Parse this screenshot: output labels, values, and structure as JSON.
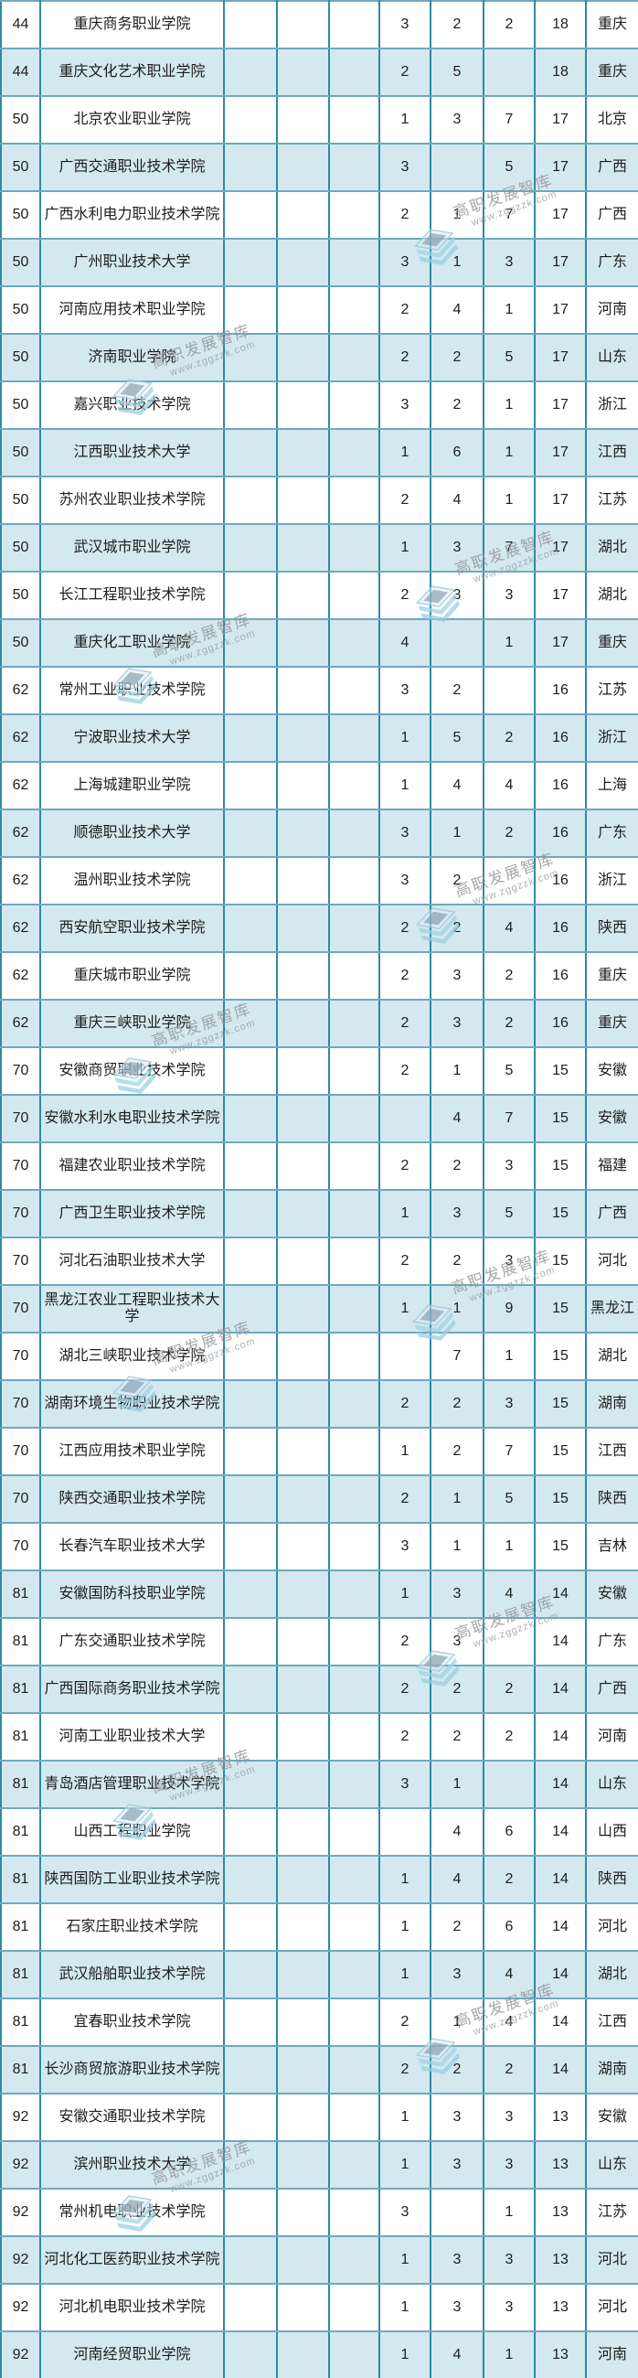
{
  "chart_data": {
    "type": "table",
    "columns": [
      "rank",
      "college_name",
      "blank_1",
      "blank_2",
      "blank_3",
      "num_1",
      "num_2",
      "num_3",
      "total",
      "province"
    ],
    "rows": [
      [
        "44",
        "重庆商务职业学院",
        "",
        "",
        "",
        "3",
        "2",
        "2",
        "18",
        "重庆"
      ],
      [
        "44",
        "重庆文化艺术职业学院",
        "",
        "",
        "",
        "2",
        "5",
        "",
        "18",
        "重庆"
      ],
      [
        "50",
        "北京农业职业学院",
        "",
        "",
        "",
        "1",
        "3",
        "7",
        "17",
        "北京"
      ],
      [
        "50",
        "广西交通职业技术学院",
        "",
        "",
        "",
        "3",
        "",
        "5",
        "17",
        "广西"
      ],
      [
        "50",
        "广西水利电力职业技术学院",
        "",
        "",
        "",
        "2",
        "1",
        "7",
        "17",
        "广西"
      ],
      [
        "50",
        "广州职业技术大学",
        "",
        "",
        "",
        "3",
        "1",
        "3",
        "17",
        "广东"
      ],
      [
        "50",
        "河南应用技术职业学院",
        "",
        "",
        "",
        "2",
        "4",
        "1",
        "17",
        "河南"
      ],
      [
        "50",
        "济南职业学院",
        "",
        "",
        "",
        "2",
        "2",
        "5",
        "17",
        "山东"
      ],
      [
        "50",
        "嘉兴职业技术学院",
        "",
        "",
        "",
        "3",
        "2",
        "1",
        "17",
        "浙江"
      ],
      [
        "50",
        "江西职业技术大学",
        "",
        "",
        "",
        "1",
        "6",
        "1",
        "17",
        "江西"
      ],
      [
        "50",
        "苏州农业职业技术学院",
        "",
        "",
        "",
        "2",
        "4",
        "1",
        "17",
        "江苏"
      ],
      [
        "50",
        "武汉城市职业学院",
        "",
        "",
        "",
        "1",
        "3",
        "7",
        "17",
        "湖北"
      ],
      [
        "50",
        "长江工程职业技术学院",
        "",
        "",
        "",
        "2",
        "3",
        "3",
        "17",
        "湖北"
      ],
      [
        "50",
        "重庆化工职业学院",
        "",
        "",
        "",
        "4",
        "",
        "1",
        "17",
        "重庆"
      ],
      [
        "62",
        "常州工业职业技术学院",
        "",
        "",
        "",
        "3",
        "2",
        "",
        "16",
        "江苏"
      ],
      [
        "62",
        "宁波职业技术大学",
        "",
        "",
        "",
        "1",
        "5",
        "2",
        "16",
        "浙江"
      ],
      [
        "62",
        "上海城建职业学院",
        "",
        "",
        "",
        "1",
        "4",
        "4",
        "16",
        "上海"
      ],
      [
        "62",
        "顺德职业技术大学",
        "",
        "",
        "",
        "3",
        "1",
        "2",
        "16",
        "广东"
      ],
      [
        "62",
        "温州职业技术学院",
        "",
        "",
        "",
        "3",
        "2",
        "",
        "16",
        "浙江"
      ],
      [
        "62",
        "西安航空职业技术学院",
        "",
        "",
        "",
        "2",
        "2",
        "4",
        "16",
        "陕西"
      ],
      [
        "62",
        "重庆城市职业学院",
        "",
        "",
        "",
        "2",
        "3",
        "2",
        "16",
        "重庆"
      ],
      [
        "62",
        "重庆三峡职业学院",
        "",
        "",
        "",
        "2",
        "3",
        "2",
        "16",
        "重庆"
      ],
      [
        "70",
        "安徽商贸职业技术学院",
        "",
        "",
        "",
        "2",
        "1",
        "5",
        "15",
        "安徽"
      ],
      [
        "70",
        "安徽水利水电职业技术学院",
        "",
        "",
        "",
        "",
        "4",
        "7",
        "15",
        "安徽"
      ],
      [
        "70",
        "福建农业职业技术学院",
        "",
        "",
        "",
        "2",
        "2",
        "3",
        "15",
        "福建"
      ],
      [
        "70",
        "广西卫生职业技术学院",
        "",
        "",
        "",
        "1",
        "3",
        "5",
        "15",
        "广西"
      ],
      [
        "70",
        "河北石油职业技术大学",
        "",
        "",
        "",
        "2",
        "2",
        "3",
        "15",
        "河北"
      ],
      [
        "70",
        "黑龙江农业工程职业技术大学",
        "",
        "",
        "",
        "1",
        "1",
        "9",
        "15",
        "黑龙江"
      ],
      [
        "70",
        "湖北三峡职业技术学院",
        "",
        "",
        "",
        "",
        "7",
        "1",
        "15",
        "湖北"
      ],
      [
        "70",
        "湖南环境生物职业技术学院",
        "",
        "",
        "",
        "2",
        "2",
        "3",
        "15",
        "湖南"
      ],
      [
        "70",
        "江西应用技术职业学院",
        "",
        "",
        "",
        "1",
        "2",
        "7",
        "15",
        "江西"
      ],
      [
        "70",
        "陕西交通职业技术学院",
        "",
        "",
        "",
        "2",
        "1",
        "5",
        "15",
        "陕西"
      ],
      [
        "70",
        "长春汽车职业技术大学",
        "",
        "",
        "",
        "3",
        "1",
        "1",
        "15",
        "吉林"
      ],
      [
        "81",
        "安徽国防科技职业学院",
        "",
        "",
        "",
        "1",
        "3",
        "4",
        "14",
        "安徽"
      ],
      [
        "81",
        "广东交通职业技术学院",
        "",
        "",
        "",
        "2",
        "3",
        "",
        "14",
        "广东"
      ],
      [
        "81",
        "广西国际商务职业技术学院",
        "",
        "",
        "",
        "2",
        "2",
        "2",
        "14",
        "广西"
      ],
      [
        "81",
        "河南工业职业技术大学",
        "",
        "",
        "",
        "2",
        "2",
        "2",
        "14",
        "河南"
      ],
      [
        "81",
        "青岛酒店管理职业技术学院",
        "",
        "",
        "",
        "3",
        "1",
        "",
        "14",
        "山东"
      ],
      [
        "81",
        "山西工程职业学院",
        "",
        "",
        "",
        "",
        "4",
        "6",
        "14",
        "山西"
      ],
      [
        "81",
        "陕西国防工业职业技术学院",
        "",
        "",
        "",
        "1",
        "4",
        "2",
        "14",
        "陕西"
      ],
      [
        "81",
        "石家庄职业技术学院",
        "",
        "",
        "",
        "1",
        "2",
        "6",
        "14",
        "河北"
      ],
      [
        "81",
        "武汉船舶职业技术学院",
        "",
        "",
        "",
        "1",
        "3",
        "4",
        "14",
        "湖北"
      ],
      [
        "81",
        "宜春职业技术学院",
        "",
        "",
        "",
        "2",
        "1",
        "4",
        "14",
        "江西"
      ],
      [
        "81",
        "长沙商贸旅游职业技术学院",
        "",
        "",
        "",
        "2",
        "2",
        "2",
        "14",
        "湖南"
      ],
      [
        "92",
        "安徽交通职业技术学院",
        "",
        "",
        "",
        "1",
        "3",
        "3",
        "13",
        "安徽"
      ],
      [
        "92",
        "滨州职业技术大学",
        "",
        "",
        "",
        "1",
        "3",
        "3",
        "13",
        "山东"
      ],
      [
        "92",
        "常州机电职业技术学院",
        "",
        "",
        "",
        "3",
        "",
        "1",
        "13",
        "江苏"
      ],
      [
        "92",
        "河北化工医药职业技术学院",
        "",
        "",
        "",
        "1",
        "3",
        "3",
        "13",
        "河北"
      ],
      [
        "92",
        "河北机电职业技术学院",
        "",
        "",
        "",
        "1",
        "3",
        "3",
        "13",
        "河北"
      ],
      [
        "92",
        "河南经贸职业学院",
        "",
        "",
        "",
        "1",
        "4",
        "1",
        "13",
        "河南"
      ]
    ]
  },
  "watermark": {
    "title": "高职发展智库",
    "url": "www.zggzzk.com"
  },
  "colors": {
    "border_vertical": "#2f8aa2",
    "border_horizontal": "#6fa9bd",
    "row_even": "#d4e8ef",
    "row_odd": "#ffffff",
    "text": "#1d1d1d",
    "watermark_blue": "#9ed2e4",
    "watermark_gray": "#94999e"
  }
}
